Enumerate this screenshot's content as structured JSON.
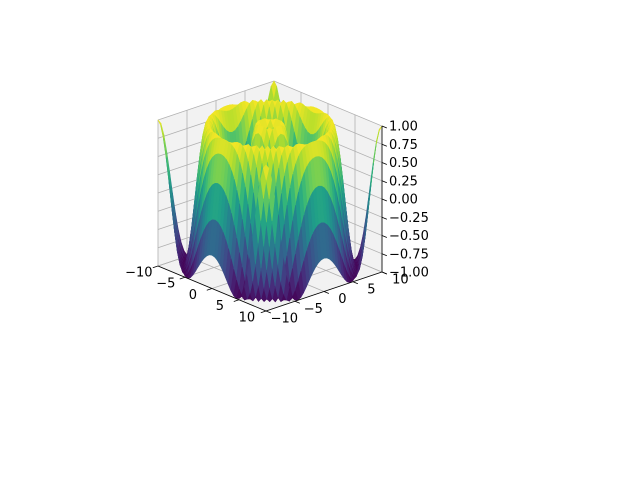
{
  "chart_data": {
    "type": "surface3d",
    "function": "sin(sqrt(x^2 + y^2))",
    "x_range": [
      -10,
      10
    ],
    "y_range": [
      -10,
      10
    ],
    "z_range": [
      -1,
      1
    ],
    "colormap": "viridis",
    "grid": true,
    "x_ticks": [
      {
        "value": -10,
        "label": "−10"
      },
      {
        "value": -5,
        "label": "−5"
      },
      {
        "value": 0,
        "label": "0"
      },
      {
        "value": 5,
        "label": "5"
      },
      {
        "value": 10,
        "label": "10"
      }
    ],
    "y_ticks": [
      {
        "value": -10,
        "label": "−10"
      },
      {
        "value": -5,
        "label": "−5"
      },
      {
        "value": 0,
        "label": "0"
      },
      {
        "value": 5,
        "label": "5"
      },
      {
        "value": 10,
        "label": "10"
      }
    ],
    "z_ticks": [
      {
        "value": -1.0,
        "label": "−1.00"
      },
      {
        "value": -0.75,
        "label": "−0.75"
      },
      {
        "value": -0.5,
        "label": "−0.50"
      },
      {
        "value": -0.25,
        "label": "−0.25"
      },
      {
        "value": 0.0,
        "label": "0.00"
      },
      {
        "value": 0.25,
        "label": "0.25"
      },
      {
        "value": 0.5,
        "label": "0.50"
      },
      {
        "value": 0.75,
        "label": "0.75"
      },
      {
        "value": 1.0,
        "label": "1.00"
      }
    ]
  }
}
